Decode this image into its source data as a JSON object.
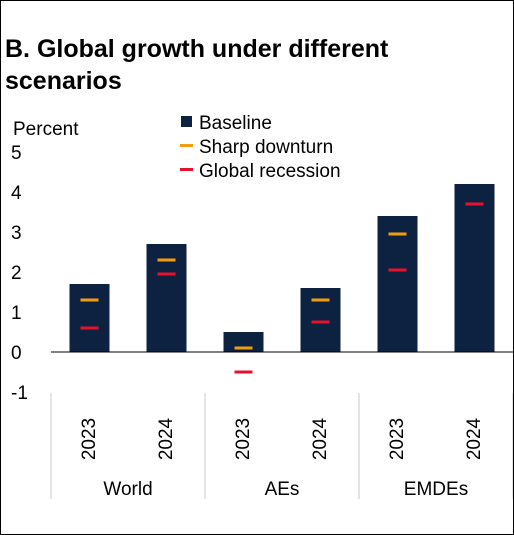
{
  "chart_data": {
    "type": "bar",
    "title": "B. Global growth under different scenarios",
    "ylabel": "Percent",
    "ylim": [
      -1,
      5
    ],
    "yticks": [
      5,
      4,
      3,
      2,
      1,
      0,
      -1
    ],
    "grid": false,
    "legend_placement": "top-center",
    "categories": [
      "2023",
      "2024",
      "2023",
      "2024",
      "2023",
      "2024"
    ],
    "groups": [
      {
        "name": "World",
        "categories": [
          "2023",
          "2024"
        ]
      },
      {
        "name": "AEs",
        "categories": [
          "2023",
          "2024"
        ]
      },
      {
        "name": "EMDEs",
        "categories": [
          "2023",
          "2024"
        ]
      }
    ],
    "series": [
      {
        "name": "Baseline",
        "kind": "bar",
        "color": "#0d2240",
        "values": [
          1.7,
          2.7,
          0.5,
          1.6,
          3.4,
          4.2
        ]
      },
      {
        "name": "Sharp downturn",
        "kind": "marker",
        "color": "#f39c12",
        "values": [
          1.3,
          2.3,
          0.1,
          1.3,
          2.95,
          3.7
        ]
      },
      {
        "name": "Global recession",
        "kind": "marker",
        "color": "#e8112d",
        "values": [
          0.6,
          1.95,
          -0.5,
          0.75,
          2.05,
          3.7
        ]
      }
    ]
  }
}
